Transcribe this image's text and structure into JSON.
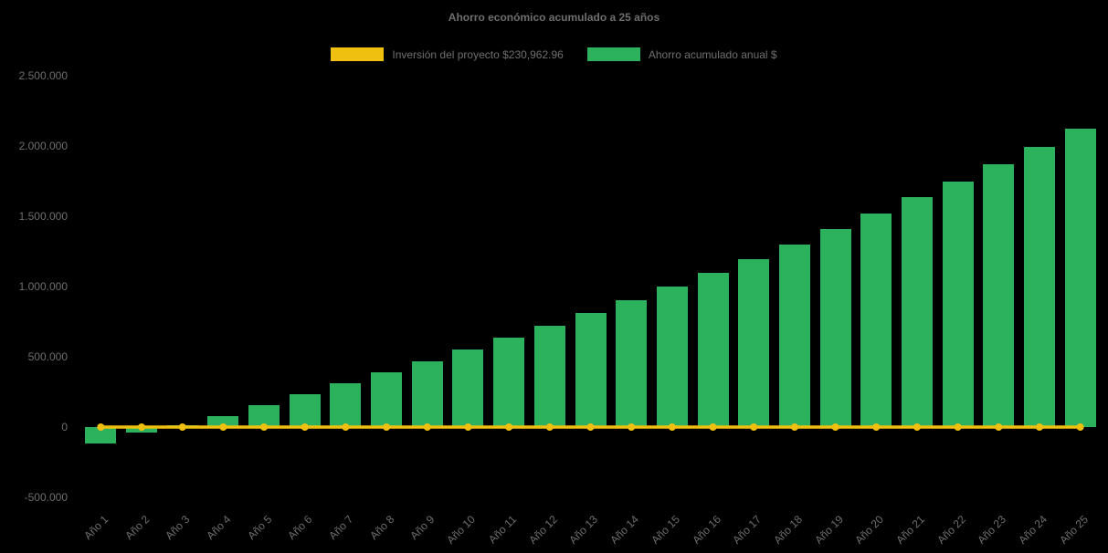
{
  "page": {
    "background": "#000000",
    "text_color": "#6e6e6e"
  },
  "chart_data": {
    "type": "bar",
    "title": "Ahorro económico acumulado a 25 años",
    "categories": [
      "Año 1",
      "Año 2",
      "Año 3",
      "Año 4",
      "Año 5",
      "Año 6",
      "Año 7",
      "Año 8",
      "Año 9",
      "Año 10",
      "Año 11",
      "Año 12",
      "Año 13",
      "Año 14",
      "Año 15",
      "Año 16",
      "Año 17",
      "Año 18",
      "Año 19",
      "Año 20",
      "Año 21",
      "Año 22",
      "Año 23",
      "Año 24",
      "Año 25"
    ],
    "series": [
      {
        "name": "Inversión del proyecto $230,962.96",
        "type": "line",
        "color": "#f0c011",
        "values": [
          0,
          0,
          0,
          0,
          0,
          0,
          0,
          0,
          0,
          0,
          0,
          0,
          0,
          0,
          0,
          0,
          0,
          0,
          0,
          0,
          0,
          0,
          0,
          0,
          0
        ]
      },
      {
        "name": "Ahorro acumulado anual $",
        "type": "bar",
        "color": "#2cb15d",
        "values": [
          -120000,
          -40000,
          15000,
          80000,
          155000,
          235000,
          310000,
          390000,
          470000,
          550000,
          635000,
          720000,
          810000,
          900000,
          1000000,
          1095000,
          1195000,
          1300000,
          1410000,
          1520000,
          1635000,
          1750000,
          1870000,
          1995000,
          2125000
        ]
      }
    ],
    "ylim": [
      -500000,
      2500000
    ],
    "yticks": [
      2500000,
      2000000,
      1500000,
      1000000,
      500000,
      0,
      -500000
    ],
    "ytick_labels": [
      "2.500.000",
      "2.000.000",
      "1.500.000",
      "1.000.000",
      "500.000",
      "0",
      "-500.000"
    ],
    "grid": false,
    "legend_position": "top"
  }
}
